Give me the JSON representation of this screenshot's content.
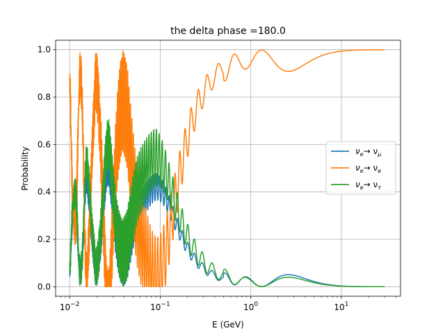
{
  "chart_data": {
    "type": "line",
    "title": "the delta phase =180.0",
    "xlabel": "E (GeV)",
    "ylabel": "Probability",
    "xscale": "log",
    "xlim": [
      0.007,
      45
    ],
    "ylim": [
      -0.04,
      1.04
    ],
    "grid": true,
    "legend_position": "center-right",
    "x_ticks": [
      {
        "base": "10",
        "exp": "−2",
        "value": 0.01
      },
      {
        "base": "10",
        "exp": "−1",
        "value": 0.1
      },
      {
        "base": "10",
        "exp": "0",
        "value": 1
      },
      {
        "base": "10",
        "exp": "1",
        "value": 10
      }
    ],
    "y_ticks": [
      {
        "label": "0.0",
        "value": 0.0
      },
      {
        "label": "0.2",
        "value": 0.2
      },
      {
        "label": "0.4",
        "value": 0.4
      },
      {
        "label": "0.6",
        "value": 0.6
      },
      {
        "label": "0.8",
        "value": 0.8
      },
      {
        "label": "1.0",
        "value": 1.0
      }
    ],
    "energy_range_gev": [
      0.01,
      30
    ],
    "series": [
      {
        "name": "νe→ νμ",
        "sub_from": "e",
        "sub_to": "μ",
        "color": "#1f77b4",
        "x": [
          0.01,
          0.012,
          0.015,
          0.02,
          0.03,
          0.04,
          0.06,
          0.08,
          0.12,
          0.2,
          0.3,
          0.5,
          0.8,
          1.0,
          1.5,
          2.5,
          4,
          8,
          30
        ],
        "y": [
          0.06,
          0.35,
          0.05,
          0.45,
          0.1,
          0.05,
          0.15,
          0.3,
          0.25,
          0.12,
          0.06,
          0.03,
          0.05,
          0.02,
          0.02,
          0.05,
          0.04,
          0.01,
          0.0
        ]
      },
      {
        "name": "νe→ νe",
        "sub_from": "e",
        "sub_to": "e",
        "color": "#ff7f0e",
        "x": [
          0.01,
          0.012,
          0.013,
          0.015,
          0.02,
          0.025,
          0.03,
          0.04,
          0.05,
          0.06,
          0.08,
          0.12,
          0.2,
          0.3,
          0.5,
          0.8,
          1.0,
          1.3,
          2.5,
          5,
          10,
          30
        ],
        "y": [
          0.8,
          0.3,
          0.99,
          0.6,
          0.95,
          0.45,
          0.4,
          0.99,
          0.6,
          0.4,
          0.2,
          0.3,
          0.55,
          0.7,
          0.87,
          0.95,
          0.9,
          0.99,
          0.91,
          0.96,
          0.985,
          1.0
        ]
      },
      {
        "name": "νe→ ντ",
        "sub_from": "e",
        "sub_to": "τ",
        "color": "#2ca02c",
        "x": [
          0.01,
          0.011,
          0.012,
          0.015,
          0.02,
          0.025,
          0.03,
          0.04,
          0.06,
          0.08,
          0.12,
          0.2,
          0.3,
          0.5,
          0.8,
          1.0,
          2.5,
          5,
          10,
          30
        ],
        "y": [
          0.15,
          0.6,
          0.3,
          0.6,
          0.05,
          0.55,
          0.35,
          0.02,
          0.45,
          0.55,
          0.35,
          0.2,
          0.12,
          0.06,
          0.03,
          0.01,
          0.04,
          0.02,
          0.01,
          0.0
        ]
      }
    ]
  }
}
